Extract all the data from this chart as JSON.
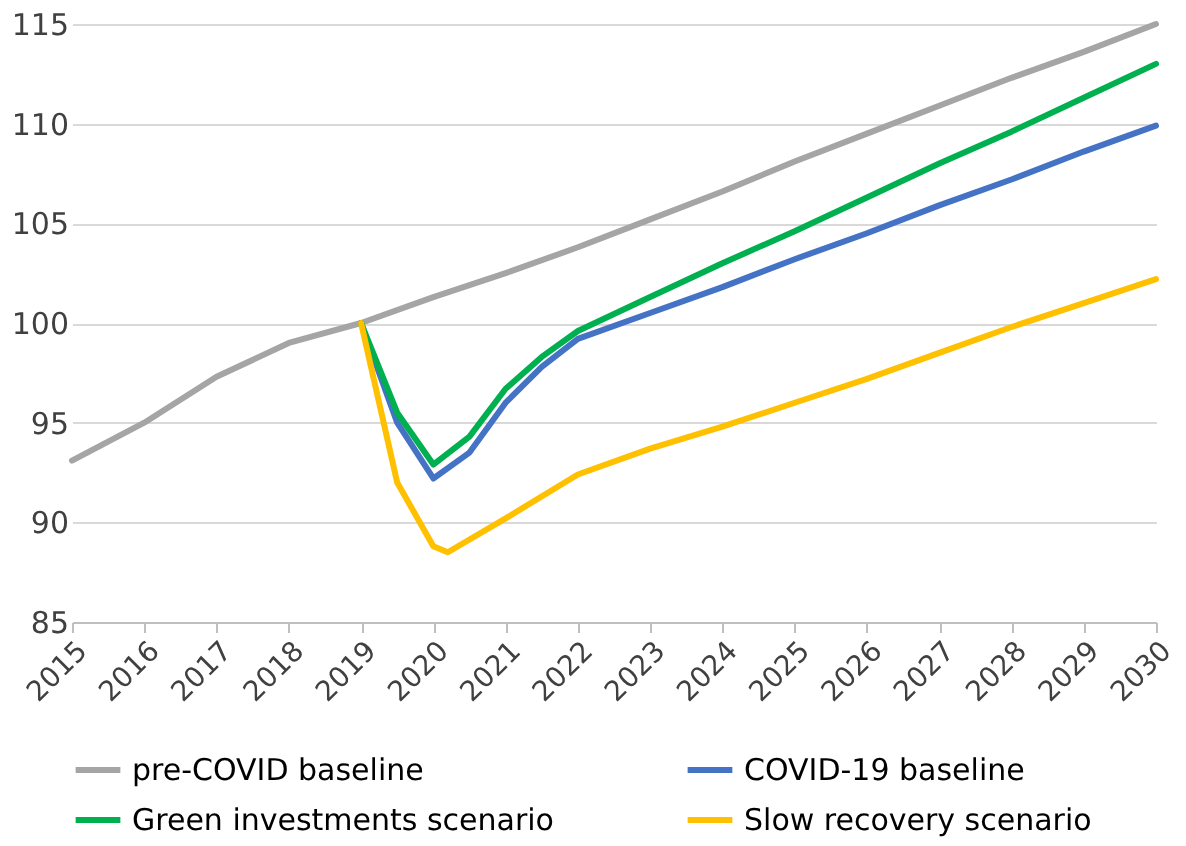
{
  "chart_data": {
    "type": "line",
    "xlim": [
      2015,
      2030
    ],
    "xticks": [
      2015,
      2016,
      2017,
      2018,
      2019,
      2020,
      2021,
      2022,
      2023,
      2024,
      2025,
      2026,
      2027,
      2028,
      2029,
      2030
    ],
    "ylim": [
      85,
      115
    ],
    "yticks": [
      85,
      90,
      95,
      100,
      105,
      110,
      115
    ],
    "grid": "y",
    "legend": "bottom",
    "marker": "none",
    "line_style": "solid",
    "series": [
      {
        "name": "pre-COVID baseline",
        "color": "#a5a5a5",
        "x": [
          2015,
          2016,
          2017,
          2018,
          2019,
          2020,
          2021,
          2022,
          2023,
          2024,
          2025,
          2026,
          2027,
          2028,
          2029,
          2030
        ],
        "values": [
          93.1,
          95,
          97.3,
          99,
          100,
          101.3,
          102.5,
          103.8,
          105.2,
          106.6,
          108.1,
          109.5,
          110.9,
          112.3,
          113.6,
          115
        ]
      },
      {
        "name": "COVID-19 baseline",
        "color": "#4472c4",
        "x": [
          2019,
          2019.5,
          2020,
          2020.5,
          2021,
          2021.5,
          2022,
          2023,
          2024,
          2025,
          2026,
          2027,
          2028,
          2029,
          2030
        ],
        "values": [
          100,
          95,
          92.2,
          93.5,
          96,
          97.8,
          99.2,
          100.5,
          101.8,
          103.2,
          104.5,
          105.9,
          107.2,
          108.6,
          109.9
        ]
      },
      {
        "name": "Green investments scenario",
        "color": "#00b050",
        "x": [
          2019,
          2019.5,
          2020,
          2020.5,
          2021,
          2021.5,
          2022,
          2023,
          2024,
          2025,
          2026,
          2027,
          2028,
          2029,
          2030
        ],
        "values": [
          100,
          95.5,
          92.9,
          94.3,
          96.7,
          98.3,
          99.6,
          101.3,
          103,
          104.6,
          106.3,
          108,
          109.6,
          111.3,
          113
        ]
      },
      {
        "name": "Slow recovery scenario",
        "color": "#ffc000",
        "x": [
          2019,
          2019.5,
          2020,
          2020.2,
          2021,
          2022,
          2023,
          2024,
          2025,
          2026,
          2027,
          2028,
          2029,
          2030
        ],
        "values": [
          100,
          92,
          88.8,
          88.5,
          90.2,
          92.4,
          93.7,
          94.8,
          96,
          97.2,
          98.5,
          99.8,
          101,
          102.2
        ]
      }
    ]
  }
}
